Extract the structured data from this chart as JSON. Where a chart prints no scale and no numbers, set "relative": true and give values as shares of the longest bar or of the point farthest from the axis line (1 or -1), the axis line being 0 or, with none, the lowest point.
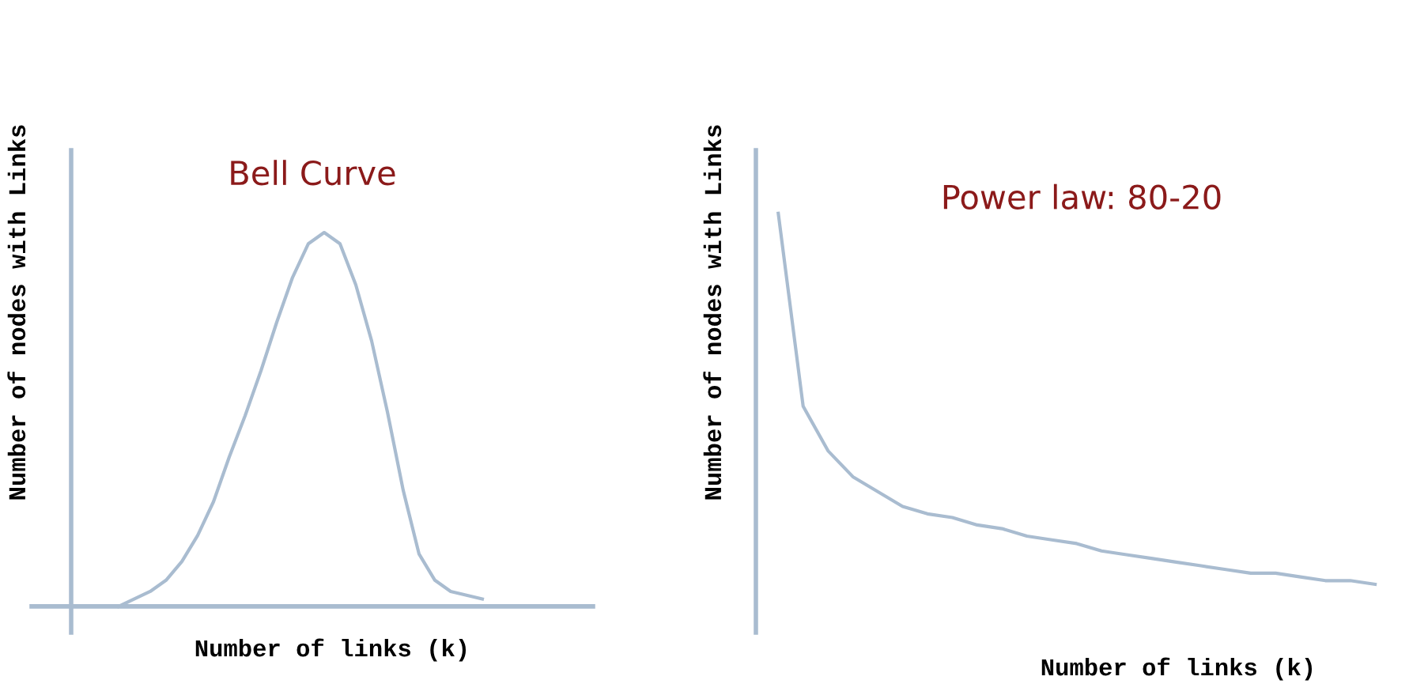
{
  "chart_data": [
    {
      "type": "line",
      "title": "Bell Curve",
      "xlabel": "Number of links (k)",
      "ylabel": "Number of nodes with Links",
      "relative": true,
      "categories": [
        null,
        null,
        null,
        null,
        null,
        null,
        null,
        null,
        null,
        null,
        null,
        null,
        null,
        null,
        null,
        null,
        null,
        null,
        null,
        null,
        null,
        null,
        null,
        null
      ],
      "series": [
        {
          "color": "#a9bcd0",
          "values": [
            0,
            0.02,
            0.04,
            0.07,
            0.12,
            0.19,
            0.28,
            0.4,
            0.51,
            0.63,
            0.76,
            0.88,
            0.97,
            1.0,
            0.97,
            0.86,
            0.71,
            0.52,
            0.31,
            0.14,
            0.07,
            0.04,
            0.03,
            0.02
          ]
        }
      ]
    },
    {
      "type": "line",
      "title": "Power law: 80-20",
      "xlabel": "Number of links (k)",
      "ylabel": "Number of nodes with Links",
      "relative": true,
      "categories": [
        null,
        null,
        null,
        null,
        null,
        null,
        null,
        null,
        null,
        null,
        null,
        null,
        null,
        null,
        null,
        null,
        null,
        null,
        null,
        null,
        null,
        null,
        null,
        null,
        null
      ],
      "series": [
        {
          "color": "#a9bcd0",
          "values": [
            1.0,
            0.48,
            0.36,
            0.29,
            0.25,
            0.21,
            0.19,
            0.18,
            0.16,
            0.15,
            0.13,
            0.12,
            0.11,
            0.09,
            0.08,
            0.07,
            0.06,
            0.05,
            0.04,
            0.03,
            0.03,
            0.02,
            0.01,
            0.01,
            0
          ]
        }
      ]
    }
  ]
}
